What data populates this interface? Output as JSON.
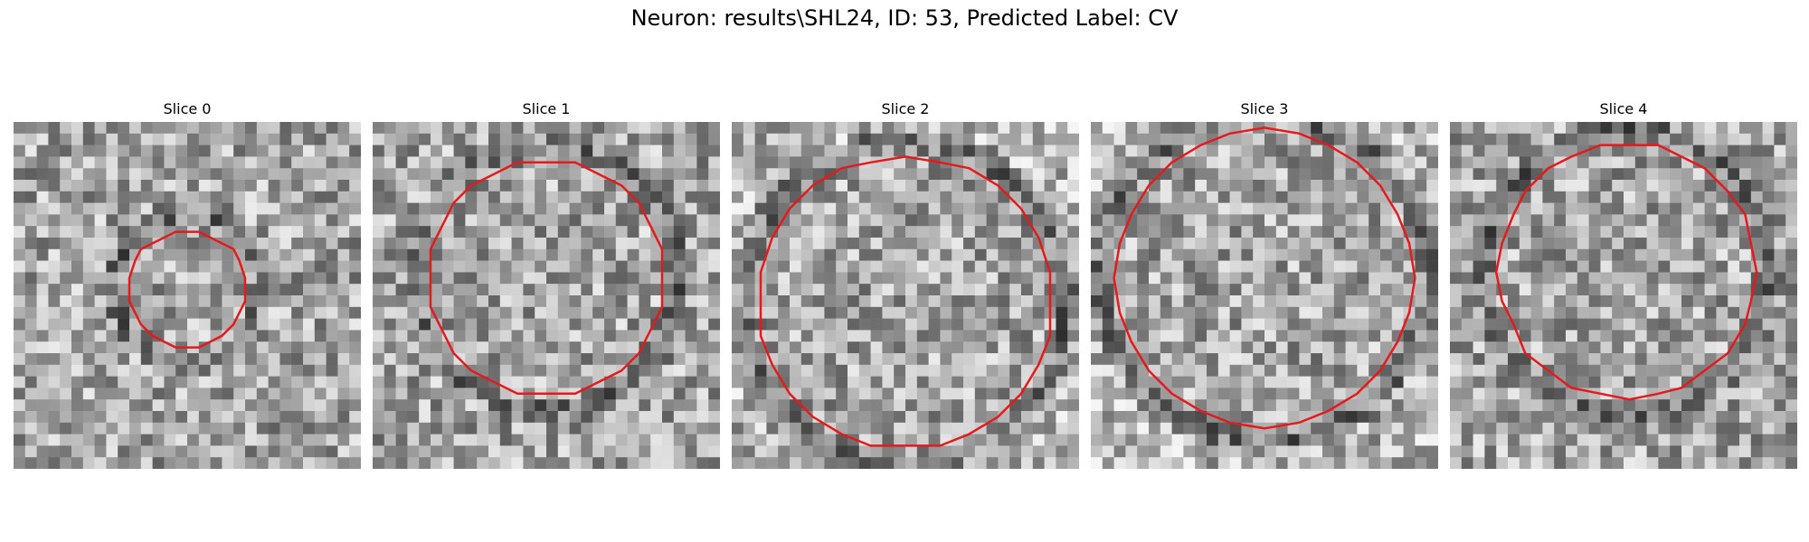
{
  "figure": {
    "title": "Neuron: results\\SHL24, ID: 53, Predicted Label: CV"
  },
  "slices": [
    {
      "label": "Slice 0",
      "center": [
        0.5,
        0.48
      ],
      "radius": 0.17,
      "edge_ring": false,
      "seed": 11
    },
    {
      "label": "Slice 1",
      "center": [
        0.5,
        0.45
      ],
      "radius": 0.34,
      "edge_ring": false,
      "seed": 23
    },
    {
      "label": "Slice 2",
      "center": [
        0.5,
        0.52
      ],
      "radius": 0.42,
      "edge_ring": true,
      "seed": 37
    },
    {
      "label": "Slice 3",
      "center": [
        0.5,
        0.45
      ],
      "radius": 0.43,
      "edge_ring": true,
      "seed": 41
    },
    {
      "label": "Slice 4",
      "center": [
        0.51,
        0.43
      ],
      "radius": 0.37,
      "edge_ring": false,
      "seed": 59
    }
  ],
  "style": {
    "contour_color": "#e41a1c",
    "pixel_grid": 30
  }
}
